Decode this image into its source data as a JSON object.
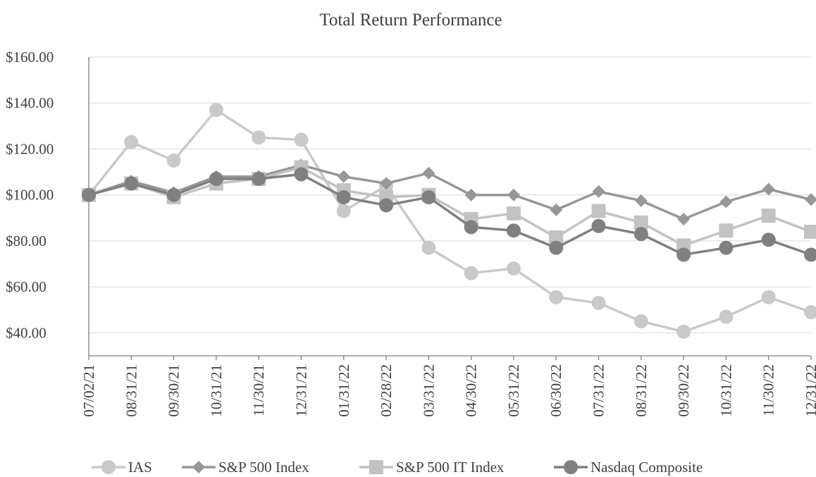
{
  "chart_data": {
    "type": "line",
    "title": "Total Return Performance",
    "categories": [
      "07/02/21",
      "08/31/21",
      "09/30/21",
      "10/31/21",
      "11/30/21",
      "12/31/21",
      "01/31/22",
      "02/28/22",
      "03/31/22",
      "04/30/22",
      "05/31/22",
      "06/30/22",
      "07/31/22",
      "08/31/22",
      "09/30/22",
      "10/31/22",
      "11/30/22",
      "12/31/22"
    ],
    "series": [
      {
        "name": "IAS",
        "color": "#c9c9c9",
        "marker": "circle",
        "values": [
          100,
          123,
          115,
          137,
          125,
          124,
          93,
          104,
          77,
          66,
          68,
          55.5,
          53,
          45,
          40.5,
          47,
          55.5,
          49
        ]
      },
      {
        "name": "S&P 500 Index",
        "color": "#979797",
        "marker": "diamond",
        "values": [
          100,
          106,
          101,
          108,
          108,
          113,
          108,
          105,
          109.5,
          100,
          100,
          93.5,
          101.5,
          97.5,
          89.5,
          97,
          102.5,
          98
        ]
      },
      {
        "name": "S&P 500 IT Index",
        "color": "#c2c2c2",
        "marker": "square",
        "values": [
          100,
          105,
          99,
          105,
          107,
          112,
          102,
          99,
          100,
          89.5,
          92,
          81.5,
          93,
          88,
          78,
          84.5,
          91,
          84
        ]
      },
      {
        "name": "Nasdaq Composite",
        "color": "#808080",
        "marker": "circle",
        "values": [
          100,
          105,
          100,
          107,
          107,
          109,
          99,
          95.5,
          99,
          86,
          84.5,
          77,
          86.5,
          83,
          74,
          77,
          80.5,
          74
        ]
      }
    ],
    "ylim": [
      30,
      160
    ],
    "yticks": [
      {
        "value": 40,
        "label": "$40.00"
      },
      {
        "value": 60,
        "label": "$60.00"
      },
      {
        "value": 80,
        "label": "$80.00"
      },
      {
        "value": 100,
        "label": "$100.00"
      },
      {
        "value": 120,
        "label": "$120.00"
      },
      {
        "value": 140,
        "label": "$140.00"
      },
      {
        "value": 160,
        "label": "$160.00"
      }
    ],
    "grid": true,
    "legend": "bottom"
  }
}
